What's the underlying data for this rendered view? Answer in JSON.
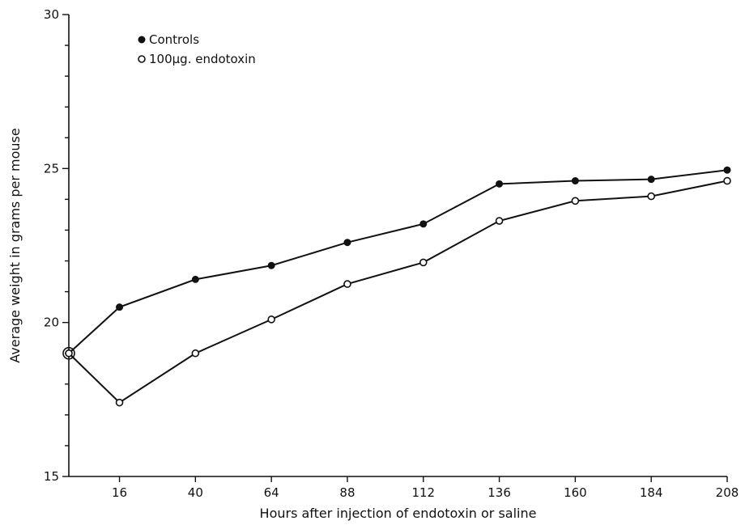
{
  "chart_data": {
    "type": "line",
    "title": "",
    "xlabel": "Hours after injection of endotoxin or saline",
    "ylabel": "Average weight in grams per mouse",
    "x_tick_labels": [
      "16",
      "40",
      "64",
      "88",
      "112",
      "136",
      "160",
      "184",
      "208"
    ],
    "x_ticks": [
      16,
      40,
      64,
      88,
      112,
      136,
      160,
      184,
      208
    ],
    "y_tick_labels": [
      "15",
      "20",
      "25",
      "30"
    ],
    "y_ticks": [
      15,
      20,
      25,
      30
    ],
    "y_minor_step": 1,
    "xlim": [
      0,
      208
    ],
    "ylim": [
      15,
      30
    ],
    "grid": false,
    "legend_position": "top-left",
    "x": [
      0,
      16,
      40,
      64,
      88,
      112,
      136,
      160,
      184,
      208
    ],
    "series": [
      {
        "name": "Controls",
        "marker": "filled-circle",
        "values": [
          19.0,
          20.5,
          21.4,
          21.85,
          22.6,
          23.2,
          24.5,
          24.6,
          24.65,
          24.95
        ]
      },
      {
        "name": "100µg. endotoxin",
        "marker": "open-circle",
        "values": [
          19.0,
          17.4,
          19.0,
          20.1,
          21.25,
          21.95,
          23.3,
          23.95,
          24.1,
          24.6
        ]
      }
    ]
  }
}
